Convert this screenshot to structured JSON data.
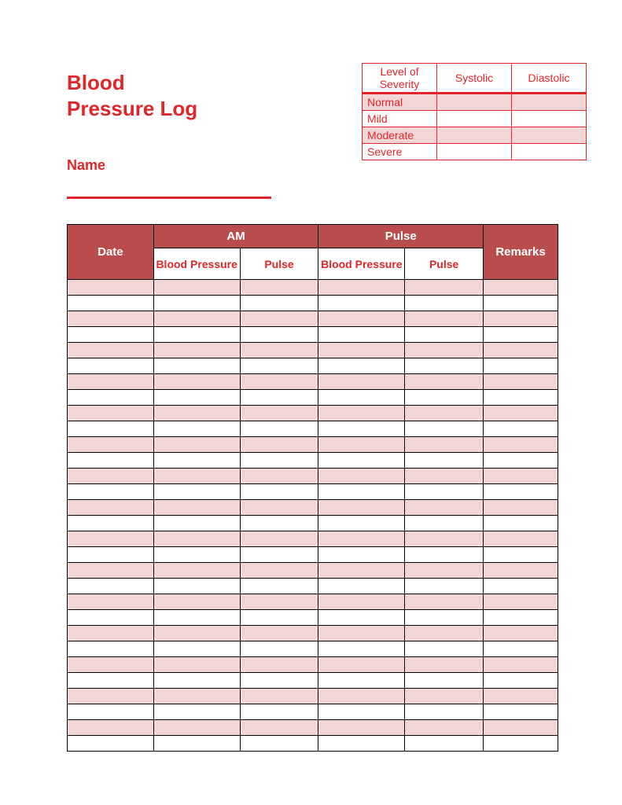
{
  "title": {
    "line1": "Blood",
    "line2": "Pressure Log"
  },
  "name_label": "Name",
  "severity_table": {
    "headers": {
      "level": "Level of Severity",
      "systolic": "Systolic",
      "diastolic": "Diastolic"
    },
    "rows": [
      {
        "label": "Normal",
        "systolic": "",
        "diastolic": "",
        "bg": "pink"
      },
      {
        "label": "Mild",
        "systolic": "",
        "diastolic": "",
        "bg": "white"
      },
      {
        "label": "Moderate",
        "systolic": "",
        "diastolic": "",
        "bg": "pink"
      },
      {
        "label": "Severe",
        "systolic": "",
        "diastolic": "",
        "bg": "white"
      }
    ],
    "colors": {
      "border": "#e0262a",
      "text": "#e0262a",
      "pink_bg": "#f2d5d5",
      "white_bg": "#ffffff"
    }
  },
  "main_table": {
    "headers_row1": {
      "date": "Date",
      "am": "AM",
      "pulse": "Pulse",
      "remarks": "Remarks"
    },
    "headers_row2": {
      "bp1": "Blood Pressure",
      "pulse1": "Pulse",
      "bp2": "Blood Pressure",
      "pulse2": "Pulse"
    },
    "num_rows": 30,
    "colors": {
      "header_bg": "#b94d4d",
      "header_text": "#ffffff",
      "subheader_text": "#e0262a",
      "pink_row": "#f2d5d5",
      "white_row": "#ffffff",
      "border": "#000000"
    }
  },
  "colors": {
    "accent": "#e0262a",
    "background": "#ffffff"
  }
}
